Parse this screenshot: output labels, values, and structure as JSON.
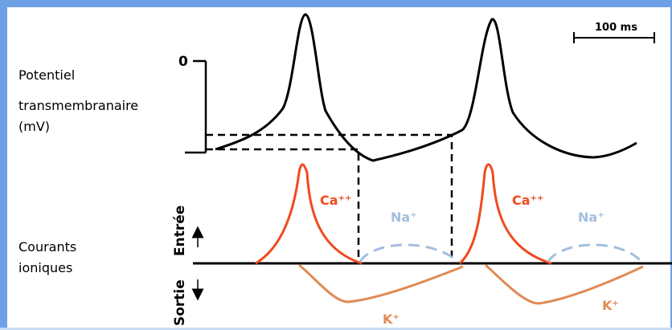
{
  "labels": {
    "potential_line1": "Potentiel",
    "potential_line2": "transmembranaire",
    "potential_line3": "(mV)",
    "currents_line1": "Courants",
    "currents_line2": "ioniques",
    "zero": "0",
    "scale": "100 ms",
    "entree": "Entrée",
    "sortie": "Sortie",
    "ca_1": "Ca⁺⁺",
    "ca_2": "Ca⁺⁺",
    "na_1": "Na⁺",
    "na_2": "Na⁺",
    "k_1": "K⁺",
    "k_2": "K⁺"
  },
  "colors": {
    "frame": "#6ea0e6",
    "calcium": "#f04a1e",
    "sodium": "#a3bedb",
    "potassium": "#e08a55",
    "trace": "#000000"
  }
}
